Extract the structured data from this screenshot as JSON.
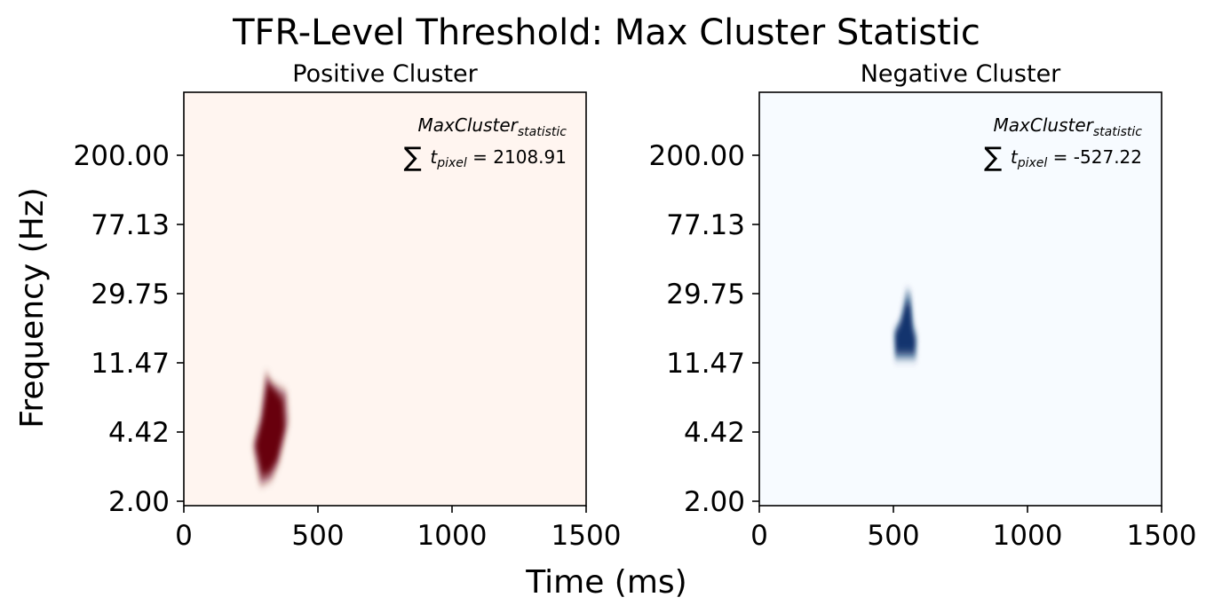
{
  "figure": {
    "title": "TFR-Level Threshold: Max Cluster Statistic",
    "ylabel": "Frequency (Hz)",
    "xlabel": "Time (ms)"
  },
  "chart_data": [
    {
      "type": "heatmap",
      "title": "Positive Cluster",
      "colormap": "Reds",
      "background_color": "#fff5f0",
      "peak_color": "#67000d",
      "x_ticks": [
        0,
        500,
        1000,
        1500
      ],
      "x_tick_labels": [
        "0",
        "500",
        "1000",
        "1500"
      ],
      "xlim": [
        0,
        1500
      ],
      "y_ticks": [
        2.0,
        4.42,
        11.47,
        29.75,
        77.13,
        200.0
      ],
      "y_tick_labels": [
        "2.00",
        "4.42",
        "11.47",
        "29.75",
        "77.13",
        "200.00"
      ],
      "y_scale": "log",
      "annotation": {
        "line1": "MaxCluster",
        "line1_sub": "statistic",
        "sum_symbol": "∑",
        "var": "t",
        "var_sub": "pixel",
        "equals": " = ",
        "value": "2108.91"
      },
      "cluster": {
        "time_range_ms": [
          250,
          390
        ],
        "freq_range_hz": [
          2.4,
          10.2
        ],
        "intensity": 1.0
      }
    },
    {
      "type": "heatmap",
      "title": "Negative Cluster",
      "colormap": "Blues",
      "background_color": "#f7fbff",
      "peak_color": "#08306b",
      "x_ticks": [
        0,
        500,
        1000,
        1500
      ],
      "x_tick_labels": [
        "0",
        "500",
        "1000",
        "1500"
      ],
      "xlim": [
        0,
        1500
      ],
      "y_ticks": [
        2.0,
        4.42,
        11.47,
        29.75,
        77.13,
        200.0
      ],
      "y_tick_labels": [
        "2.00",
        "4.42",
        "11.47",
        "29.75",
        "77.13",
        "200.00"
      ],
      "y_scale": "log",
      "annotation": {
        "line1": "MaxCluster",
        "line1_sub": "statistic",
        "sum_symbol": "∑",
        "var": "t",
        "var_sub": "pixel",
        "equals": " = ",
        "value": "-527.22"
      },
      "cluster": {
        "time_range_ms": [
          495,
          590
        ],
        "freq_range_hz": [
          12.0,
          31.5
        ],
        "intensity": 0.9
      }
    }
  ]
}
